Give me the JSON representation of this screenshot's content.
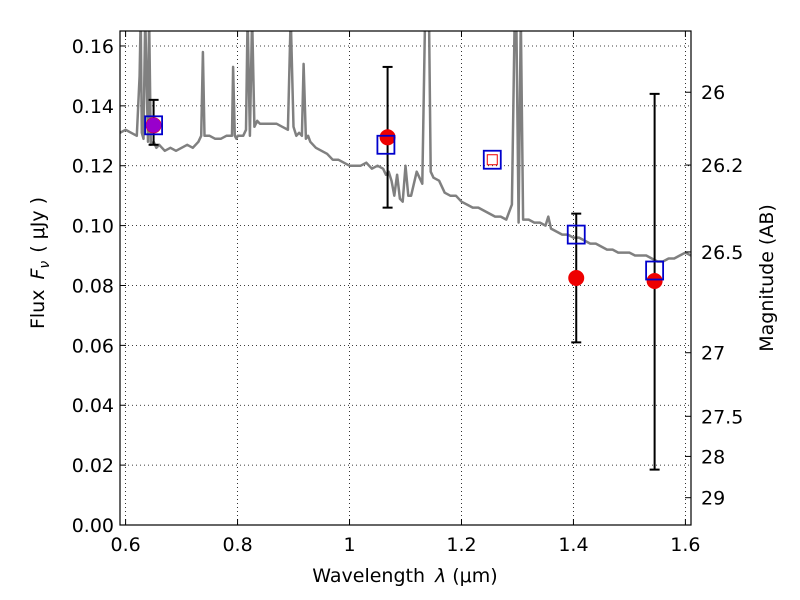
{
  "chart_data": {
    "type": "scatter",
    "xlabel_text": "Wavelength",
    "xlabel_symbol": "λ",
    "xlabel_unit": "(μm)",
    "ylabel_text": "Flux",
    "ylabel_symbol": "F",
    "ylabel_subscript": "ν",
    "ylabel_unit": "( μJy )",
    "y2label": "Magnitude (AB)",
    "xlim": [
      0.59,
      1.61
    ],
    "ylim": [
      0.0,
      0.165
    ],
    "grid": true,
    "x_ticks": [
      {
        "value": 0.6,
        "label": "0.6"
      },
      {
        "value": 0.8,
        "label": "0.8"
      },
      {
        "value": 1.0,
        "label": "1"
      },
      {
        "value": 1.2,
        "label": "1.2"
      },
      {
        "value": 1.4,
        "label": "1.4"
      },
      {
        "value": 1.6,
        "label": "1.6"
      }
    ],
    "y_ticks": [
      {
        "value": 0.0,
        "label": "0.00"
      },
      {
        "value": 0.02,
        "label": "0.02"
      },
      {
        "value": 0.04,
        "label": "0.04"
      },
      {
        "value": 0.06,
        "label": "0.06"
      },
      {
        "value": 0.08,
        "label": "0.08"
      },
      {
        "value": 0.1,
        "label": "0.10"
      },
      {
        "value": 0.12,
        "label": "0.12"
      },
      {
        "value": 0.14,
        "label": "0.14"
      },
      {
        "value": 0.16,
        "label": "0.16"
      }
    ],
    "y2_ticks": [
      {
        "mag": 26,
        "label": "26"
      },
      {
        "mag": 26.2,
        "label": "26.2"
      },
      {
        "mag": 26.5,
        "label": "26.5"
      },
      {
        "mag": 27,
        "label": "27"
      },
      {
        "mag": 27.5,
        "label": "27.5"
      },
      {
        "mag": 28,
        "label": "28"
      },
      {
        "mag": 29,
        "label": "29"
      }
    ],
    "series": [
      {
        "kind": "spectrum",
        "color": "#808080",
        "x": [
          0.59,
          0.6,
          0.61,
          0.62,
          0.625,
          0.627,
          0.629,
          0.632,
          0.635,
          0.64,
          0.642,
          0.645,
          0.65,
          0.655,
          0.66,
          0.67,
          0.68,
          0.69,
          0.7,
          0.71,
          0.72,
          0.73,
          0.735,
          0.738,
          0.741,
          0.745,
          0.75,
          0.76,
          0.77,
          0.78,
          0.79,
          0.792,
          0.795,
          0.798,
          0.8,
          0.81,
          0.815,
          0.818,
          0.822,
          0.826,
          0.83,
          0.835,
          0.84,
          0.845,
          0.85,
          0.86,
          0.87,
          0.88,
          0.89,
          0.895,
          0.9,
          0.905,
          0.91,
          0.915,
          0.918,
          0.922,
          0.926,
          0.93,
          0.94,
          0.95,
          0.96,
          0.97,
          0.98,
          0.99,
          1.0,
          1.01,
          1.02,
          1.03,
          1.04,
          1.05,
          1.06,
          1.065,
          1.07,
          1.075,
          1.08,
          1.085,
          1.09,
          1.095,
          1.1,
          1.105,
          1.11,
          1.12,
          1.13,
          1.135,
          1.138,
          1.142,
          1.145,
          1.15,
          1.16,
          1.17,
          1.18,
          1.19,
          1.2,
          1.21,
          1.22,
          1.23,
          1.24,
          1.25,
          1.26,
          1.27,
          1.28,
          1.29,
          1.295,
          1.298,
          1.302,
          1.306,
          1.31,
          1.32,
          1.33,
          1.34,
          1.35,
          1.355,
          1.36,
          1.37,
          1.38,
          1.39,
          1.4,
          1.41,
          1.42,
          1.43,
          1.44,
          1.45,
          1.46,
          1.47,
          1.48,
          1.49,
          1.5,
          1.51,
          1.52,
          1.53,
          1.54,
          1.55,
          1.56,
          1.57,
          1.58,
          1.59,
          1.6,
          1.61
        ],
        "y": [
          0.131,
          0.132,
          0.131,
          0.13,
          0.15,
          0.17,
          0.131,
          0.129,
          0.17,
          0.128,
          0.17,
          0.127,
          0.128,
          0.126,
          0.127,
          0.125,
          0.126,
          0.125,
          0.126,
          0.127,
          0.126,
          0.128,
          0.13,
          0.158,
          0.13,
          0.13,
          0.13,
          0.129,
          0.129,
          0.13,
          0.13,
          0.153,
          0.13,
          0.129,
          0.13,
          0.13,
          0.132,
          0.17,
          0.13,
          0.17,
          0.133,
          0.135,
          0.134,
          0.134,
          0.134,
          0.134,
          0.134,
          0.133,
          0.132,
          0.17,
          0.133,
          0.13,
          0.131,
          0.13,
          0.154,
          0.129,
          0.13,
          0.128,
          0.126,
          0.125,
          0.124,
          0.122,
          0.122,
          0.121,
          0.12,
          0.12,
          0.12,
          0.121,
          0.119,
          0.12,
          0.119,
          0.117,
          0.118,
          0.115,
          0.11,
          0.117,
          0.109,
          0.108,
          0.12,
          0.11,
          0.11,
          0.118,
          0.114,
          0.17,
          0.17,
          0.17,
          0.118,
          0.116,
          0.115,
          0.111,
          0.11,
          0.11,
          0.108,
          0.107,
          0.106,
          0.106,
          0.105,
          0.104,
          0.103,
          0.103,
          0.102,
          0.107,
          0.17,
          0.17,
          0.101,
          0.17,
          0.102,
          0.102,
          0.101,
          0.101,
          0.1,
          0.103,
          0.099,
          0.098,
          0.097,
          0.097,
          0.096,
          0.096,
          0.095,
          0.094,
          0.094,
          0.093,
          0.092,
          0.092,
          0.091,
          0.091,
          0.091,
          0.09,
          0.09,
          0.09,
          0.089,
          0.088,
          0.088,
          0.089,
          0.089,
          0.09,
          0.091,
          0.09
        ]
      },
      {
        "kind": "model-photometry",
        "marker": "open-square",
        "color": "#0000cc",
        "x": [
          0.65,
          1.065,
          1.255,
          1.405,
          1.545
        ],
        "y": [
          0.1335,
          0.127,
          0.122,
          0.097,
          0.085
        ]
      },
      {
        "kind": "observed",
        "marker": "filled-circle",
        "color": "#ee0000",
        "x": [
          0.65,
          1.068,
          1.405,
          1.545
        ],
        "y": [
          0.1335,
          0.1295,
          0.0825,
          0.0815
        ],
        "err_low": [
          0.127,
          0.106,
          0.061,
          0.0185
        ],
        "err_high": [
          0.142,
          0.153,
          0.104,
          0.144
        ]
      },
      {
        "kind": "small-red-square",
        "color": "#ee0000",
        "x": [
          1.255
        ],
        "y": [
          0.122
        ]
      },
      {
        "kind": "highlight",
        "color": "#9900cc",
        "x": [
          0.65
        ],
        "y": [
          0.1335
        ]
      }
    ]
  }
}
